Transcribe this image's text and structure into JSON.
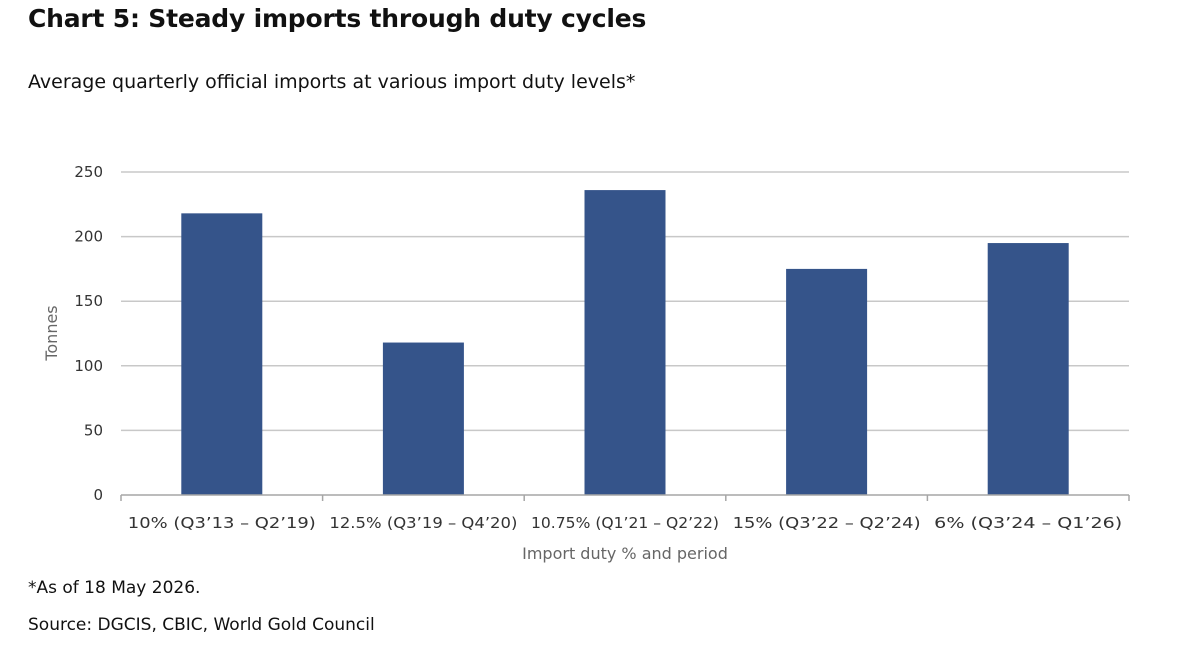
{
  "header": {
    "title": "Chart 5: Steady imports through duty cycles",
    "subtitle": "Average quarterly official imports at various import duty levels*"
  },
  "chart_data": {
    "type": "bar",
    "categories": [
      "10% (Q3’13 – Q2’19)",
      "12.5% (Q3’19 – Q4’20)",
      "10.75% (Q1’21 – Q2’22)",
      "15% (Q3’22 – Q2’24)",
      "6% (Q3’24 – Q1’26)"
    ],
    "values": [
      218,
      118,
      236,
      175,
      195
    ],
    "xlabel": "Import duty % and period",
    "ylabel": "Tonnes",
    "ylim": [
      0,
      250
    ],
    "yticks": [
      0,
      50,
      100,
      150,
      200,
      250
    ],
    "grid": true,
    "bar_color": "#35548a",
    "grid_color": "#c8c8c8"
  },
  "footer": {
    "note": "*As of 18 May 2026.",
    "source": "Source: DGCIS, CBIC, World Gold Council"
  }
}
